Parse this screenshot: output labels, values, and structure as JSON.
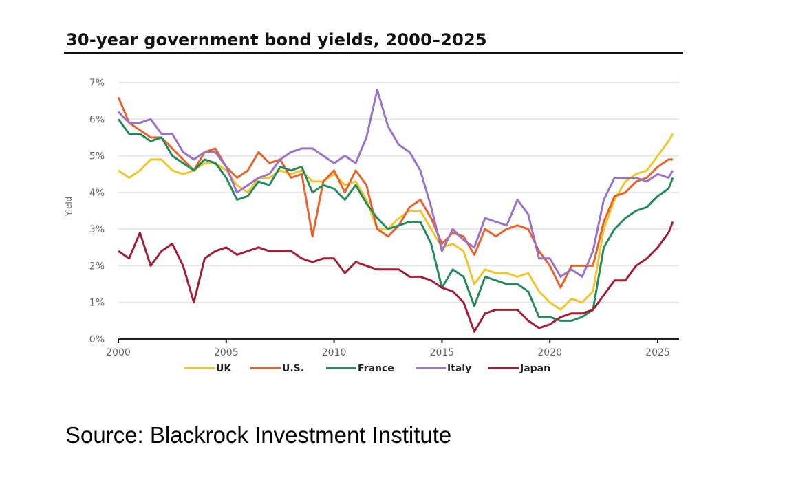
{
  "chart_data": {
    "type": "line",
    "title": "30-year government bond yields, 2000–2025",
    "xlabel": "",
    "ylabel": "Yield",
    "xlim": [
      2000,
      2025.8
    ],
    "ylim": [
      0,
      7
    ],
    "grid": true,
    "legend_position": "bottom",
    "x_ticks": [
      2000,
      2005,
      2010,
      2015,
      2020,
      2025
    ],
    "x_tick_labels": [
      "2000",
      "2005",
      "2010",
      "2015",
      "2020",
      "2025"
    ],
    "y_ticks": [
      0,
      1,
      2,
      3,
      4,
      5,
      6,
      7
    ],
    "y_tick_labels": [
      "0%",
      "1%",
      "2%",
      "3%",
      "4%",
      "5%",
      "6%",
      "7%"
    ],
    "x": [
      2000,
      2000.5,
      2001,
      2001.5,
      2002,
      2002.5,
      2003,
      2003.5,
      2004,
      2004.5,
      2005,
      2005.5,
      2006,
      2006.5,
      2007,
      2007.5,
      2008,
      2008.5,
      2009,
      2009.5,
      2010,
      2010.5,
      2011,
      2011.5,
      2012,
      2012.5,
      2013,
      2013.5,
      2014,
      2014.5,
      2015,
      2015.5,
      2016,
      2016.5,
      2017,
      2017.5,
      2018,
      2018.5,
      2019,
      2019.5,
      2020,
      2020.5,
      2021,
      2021.5,
      2022,
      2022.5,
      2023,
      2023.5,
      2024,
      2024.5,
      2025,
      2025.5,
      2025.7
    ],
    "series": [
      {
        "name": "UK",
        "color": "#f0c62c",
        "values": [
          4.6,
          4.4,
          4.6,
          4.9,
          4.9,
          4.6,
          4.5,
          4.6,
          4.8,
          4.8,
          4.6,
          4.2,
          4.0,
          4.4,
          4.4,
          4.6,
          4.5,
          4.6,
          4.3,
          4.3,
          4.5,
          4.2,
          4.3,
          3.8,
          3.0,
          3.0,
          3.3,
          3.5,
          3.5,
          3.0,
          2.5,
          2.6,
          2.4,
          1.5,
          1.9,
          1.8,
          1.8,
          1.7,
          1.8,
          1.3,
          1.0,
          0.8,
          1.1,
          1.0,
          1.3,
          3.0,
          3.8,
          4.3,
          4.5,
          4.6,
          5.0,
          5.4,
          5.6
        ]
      },
      {
        "name": "U.S.",
        "color": "#e6632c",
        "values": [
          6.6,
          5.9,
          5.7,
          5.5,
          5.5,
          5.2,
          4.9,
          4.6,
          5.1,
          5.2,
          4.7,
          4.4,
          4.6,
          5.1,
          4.8,
          4.9,
          4.4,
          4.5,
          2.8,
          4.3,
          4.6,
          4.0,
          4.6,
          4.2,
          3.0,
          2.8,
          3.1,
          3.6,
          3.8,
          3.3,
          2.6,
          2.9,
          2.8,
          2.3,
          3.0,
          2.8,
          3.0,
          3.1,
          3.0,
          2.4,
          2.0,
          1.4,
          2.0,
          2.0,
          2.0,
          3.2,
          3.9,
          4.0,
          4.3,
          4.4,
          4.7,
          4.9,
          4.9
        ]
      },
      {
        "name": "France",
        "color": "#258a5c",
        "values": [
          6.0,
          5.6,
          5.6,
          5.4,
          5.5,
          5.0,
          4.8,
          4.6,
          4.9,
          4.8,
          4.4,
          3.8,
          3.9,
          4.3,
          4.2,
          4.7,
          4.6,
          4.7,
          4.0,
          4.2,
          4.1,
          3.8,
          4.2,
          3.7,
          3.3,
          3.0,
          3.1,
          3.2,
          3.2,
          2.6,
          1.4,
          1.9,
          1.7,
          0.9,
          1.7,
          1.6,
          1.5,
          1.5,
          1.3,
          0.6,
          0.6,
          0.5,
          0.5,
          0.6,
          0.8,
          2.5,
          3.0,
          3.3,
          3.5,
          3.6,
          3.9,
          4.1,
          4.4
        ]
      },
      {
        "name": "Italy",
        "color": "#9a72c9",
        "values": [
          6.2,
          5.9,
          5.9,
          6.0,
          5.6,
          5.6,
          5.1,
          4.9,
          5.1,
          5.1,
          4.7,
          4.0,
          4.2,
          4.4,
          4.5,
          4.9,
          5.1,
          5.2,
          5.2,
          5.0,
          4.8,
          5.0,
          4.8,
          5.5,
          6.8,
          5.8,
          5.3,
          5.1,
          4.6,
          3.6,
          2.4,
          3.0,
          2.7,
          2.5,
          3.3,
          3.2,
          3.1,
          3.8,
          3.4,
          2.2,
          2.2,
          1.7,
          1.9,
          1.7,
          2.4,
          3.8,
          4.4,
          4.4,
          4.4,
          4.3,
          4.5,
          4.4,
          4.6
        ]
      },
      {
        "name": "Japan",
        "color": "#a31f36",
        "values": [
          2.4,
          2.2,
          2.9,
          2.0,
          2.4,
          2.6,
          2.0,
          1.0,
          2.2,
          2.4,
          2.5,
          2.3,
          2.4,
          2.5,
          2.4,
          2.4,
          2.4,
          2.2,
          2.1,
          2.2,
          2.2,
          1.8,
          2.1,
          2.0,
          1.9,
          1.9,
          1.9,
          1.7,
          1.7,
          1.6,
          1.4,
          1.3,
          1.0,
          0.2,
          0.7,
          0.8,
          0.8,
          0.8,
          0.5,
          0.3,
          0.4,
          0.6,
          0.7,
          0.7,
          0.8,
          1.2,
          1.6,
          1.6,
          2.0,
          2.2,
          2.5,
          2.9,
          3.2
        ]
      }
    ]
  },
  "source": "Source: Blackrock Investment Institute"
}
